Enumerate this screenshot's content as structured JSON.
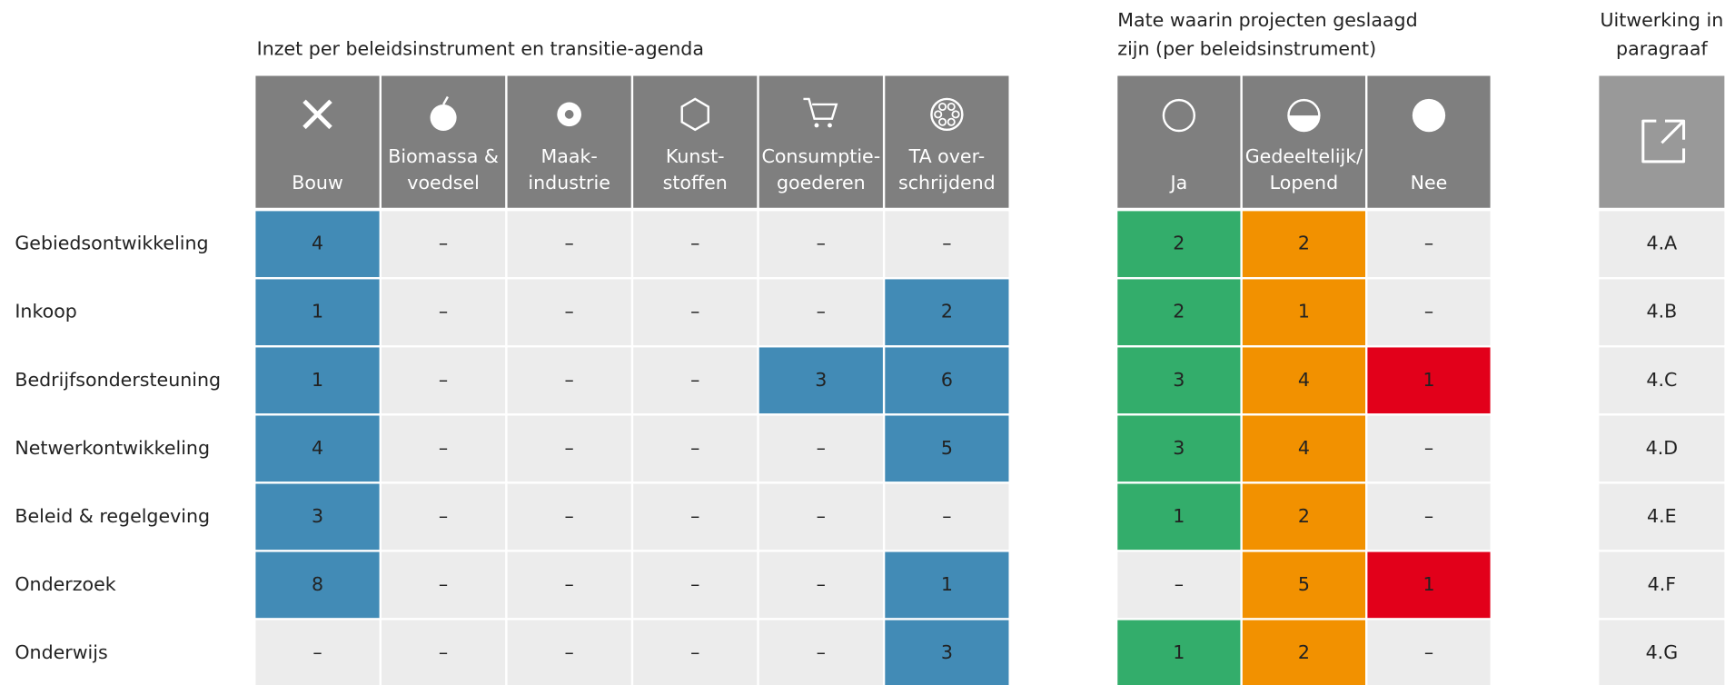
{
  "section1": {
    "title": "Inzet per beleidsinstrument en transitie-agenda",
    "columns": [
      [
        "Bouw"
      ],
      [
        "Biomassa &",
        "voedsel"
      ],
      [
        "Maak-",
        "industrie"
      ],
      [
        "Kunst-",
        "stoffen"
      ],
      [
        "Consumptie-",
        "goederen"
      ],
      [
        "TA over-",
        "schrijdend"
      ]
    ]
  },
  "section2": {
    "title": [
      "Mate waarin projecten geslaagd",
      "zijn (per beleidsinstrument)"
    ],
    "columns": [
      [
        "Ja"
      ],
      [
        "Gedeeltelijk/",
        "Lopend"
      ],
      [
        "Nee"
      ]
    ]
  },
  "section3": {
    "title": [
      "Uitwerking in",
      "paragraaf"
    ]
  },
  "rows": [
    {
      "label": "Gebiedsontwikkeling",
      "inzet": [
        4,
        "–",
        "–",
        "–",
        "–",
        "–"
      ],
      "geslaagd": [
        2,
        2,
        "–"
      ],
      "paragraaf": "4.A"
    },
    {
      "label": "Inkoop",
      "inzet": [
        1,
        "–",
        "–",
        "–",
        "–",
        2
      ],
      "geslaagd": [
        2,
        1,
        "–"
      ],
      "paragraaf": "4.B"
    },
    {
      "label": "Bedrijfsondersteuning",
      "inzet": [
        1,
        "–",
        "–",
        "–",
        3,
        6
      ],
      "geslaagd": [
        3,
        4,
        1
      ],
      "paragraaf": "4.C"
    },
    {
      "label": "Netwerkontwikkeling",
      "inzet": [
        4,
        "–",
        "–",
        "–",
        "–",
        5
      ],
      "geslaagd": [
        3,
        4,
        "–"
      ],
      "paragraaf": "4.D"
    },
    {
      "label": "Beleid & regelgeving",
      "inzet": [
        3,
        "–",
        "–",
        "–",
        "–",
        "–"
      ],
      "geslaagd": [
        1,
        2,
        "–"
      ],
      "paragraaf": "4.E"
    },
    {
      "label": "Onderzoek",
      "inzet": [
        8,
        "–",
        "–",
        "–",
        "–",
        1
      ],
      "geslaagd": [
        "–",
        5,
        1
      ],
      "paragraaf": "4.F"
    },
    {
      "label": "Onderwijs",
      "inzet": [
        "–",
        "–",
        "–",
        "–",
        "–",
        3
      ],
      "geslaagd": [
        1,
        2,
        "–"
      ],
      "paragraaf": "4.G"
    }
  ]
}
